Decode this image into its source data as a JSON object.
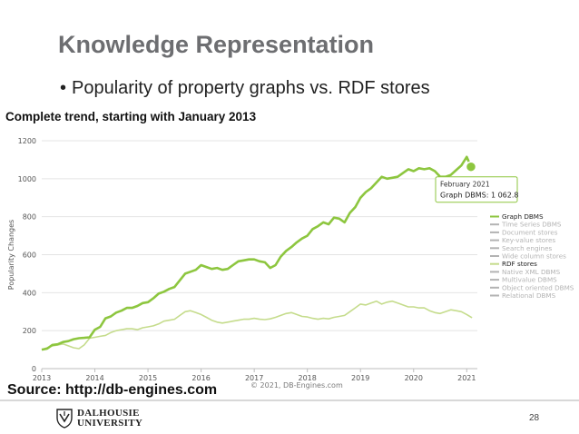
{
  "slide": {
    "title": "Knowledge Representation",
    "bullet": "Popularity of property graphs vs. RDF stores",
    "source": "Source: http://db-engines.com",
    "page_number": "28",
    "logo_line1": "DALHOUSIE",
    "logo_line2": "UNIVERSITY"
  },
  "colors": {
    "title": "#6d6e71",
    "graph_series": "#8dc63f",
    "rdf_series": "#c5dc8c",
    "legend_inactive": "#b3b3b3",
    "grid": "#e4e4e4"
  },
  "chart_data": {
    "type": "line",
    "title": "Complete trend, starting with January 2013",
    "ylabel": "Popularity Changes",
    "xlabel": "",
    "xlim": [
      2013,
      2021.2
    ],
    "ylim": [
      0,
      1200
    ],
    "yticks": [
      "0",
      "200",
      "400",
      "600",
      "800",
      "1000",
      "1200"
    ],
    "xticks": [
      "2013",
      "2014",
      "2015",
      "2016",
      "2017",
      "2018",
      "2019",
      "2020",
      "2021"
    ],
    "grid": true,
    "legend_position": "right",
    "copyright": "© 2021, DB-Engines.com",
    "legend": [
      {
        "label": "Graph DBMS",
        "active": true
      },
      {
        "label": "Time Series DBMS",
        "active": false
      },
      {
        "label": "Document stores",
        "active": false
      },
      {
        "label": "Key-value stores",
        "active": false
      },
      {
        "label": "Search engines",
        "active": false
      },
      {
        "label": "Wide column stores",
        "active": false
      },
      {
        "label": "RDF stores",
        "active": true
      },
      {
        "label": "Native XML DBMS",
        "active": false
      },
      {
        "label": "Multivalue DBMS",
        "active": false
      },
      {
        "label": "Object oriented DBMS",
        "active": false
      },
      {
        "label": "Relational DBMS",
        "active": false
      }
    ],
    "tooltip": {
      "date": "February 2021",
      "series_label": "Graph DBMS: ",
      "value_label": "1 062.8",
      "x": 2021.08,
      "y": 1062.8
    },
    "series": [
      {
        "name": "Graph DBMS",
        "points": [
          [
            2013.0,
            100
          ],
          [
            2013.1,
            105
          ],
          [
            2013.2,
            125
          ],
          [
            2013.3,
            128
          ],
          [
            2013.4,
            140
          ],
          [
            2013.5,
            145
          ],
          [
            2013.6,
            155
          ],
          [
            2013.7,
            160
          ],
          [
            2013.8,
            162
          ],
          [
            2013.9,
            165
          ],
          [
            2014.0,
            205
          ],
          [
            2014.1,
            220
          ],
          [
            2014.2,
            265
          ],
          [
            2014.3,
            275
          ],
          [
            2014.4,
            295
          ],
          [
            2014.5,
            305
          ],
          [
            2014.6,
            320
          ],
          [
            2014.7,
            320
          ],
          [
            2014.8,
            330
          ],
          [
            2014.9,
            345
          ],
          [
            2015.0,
            350
          ],
          [
            2015.1,
            370
          ],
          [
            2015.2,
            395
          ],
          [
            2015.3,
            405
          ],
          [
            2015.4,
            420
          ],
          [
            2015.5,
            430
          ],
          [
            2015.6,
            465
          ],
          [
            2015.7,
            500
          ],
          [
            2015.8,
            510
          ],
          [
            2015.9,
            520
          ],
          [
            2016.0,
            545
          ],
          [
            2016.1,
            535
          ],
          [
            2016.2,
            525
          ],
          [
            2016.3,
            530
          ],
          [
            2016.4,
            520
          ],
          [
            2016.5,
            525
          ],
          [
            2016.6,
            545
          ],
          [
            2016.7,
            565
          ],
          [
            2016.8,
            570
          ],
          [
            2016.9,
            575
          ],
          [
            2017.0,
            575
          ],
          [
            2017.1,
            565
          ],
          [
            2017.2,
            560
          ],
          [
            2017.3,
            530
          ],
          [
            2017.4,
            545
          ],
          [
            2017.5,
            590
          ],
          [
            2017.6,
            620
          ],
          [
            2017.7,
            640
          ],
          [
            2017.8,
            665
          ],
          [
            2017.9,
            685
          ],
          [
            2018.0,
            700
          ],
          [
            2018.1,
            735
          ],
          [
            2018.2,
            750
          ],
          [
            2018.3,
            770
          ],
          [
            2018.4,
            760
          ],
          [
            2018.5,
            795
          ],
          [
            2018.6,
            790
          ],
          [
            2018.7,
            770
          ],
          [
            2018.8,
            820
          ],
          [
            2018.9,
            850
          ],
          [
            2019.0,
            900
          ],
          [
            2019.1,
            930
          ],
          [
            2019.2,
            950
          ],
          [
            2019.3,
            980
          ],
          [
            2019.4,
            1010
          ],
          [
            2019.5,
            1000
          ],
          [
            2019.6,
            1005
          ],
          [
            2019.7,
            1010
          ],
          [
            2019.8,
            1030
          ],
          [
            2019.9,
            1050
          ],
          [
            2020.0,
            1040
          ],
          [
            2020.1,
            1055
          ],
          [
            2020.2,
            1050
          ],
          [
            2020.3,
            1055
          ],
          [
            2020.4,
            1040
          ],
          [
            2020.5,
            1010
          ],
          [
            2020.6,
            1010
          ],
          [
            2020.7,
            1020
          ],
          [
            2020.8,
            1045
          ],
          [
            2020.9,
            1070
          ],
          [
            2021.0,
            1115
          ],
          [
            2021.08,
            1063
          ]
        ]
      },
      {
        "name": "RDF stores",
        "points": [
          [
            2013.0,
            100
          ],
          [
            2013.1,
            110
          ],
          [
            2013.2,
            120
          ],
          [
            2013.3,
            125
          ],
          [
            2013.4,
            130
          ],
          [
            2013.5,
            120
          ],
          [
            2013.6,
            110
          ],
          [
            2013.7,
            105
          ],
          [
            2013.8,
            125
          ],
          [
            2013.9,
            160
          ],
          [
            2014.0,
            165
          ],
          [
            2014.1,
            170
          ],
          [
            2014.2,
            175
          ],
          [
            2014.3,
            190
          ],
          [
            2014.4,
            200
          ],
          [
            2014.5,
            205
          ],
          [
            2014.6,
            210
          ],
          [
            2014.7,
            210
          ],
          [
            2014.8,
            205
          ],
          [
            2014.9,
            215
          ],
          [
            2015.0,
            220
          ],
          [
            2015.1,
            225
          ],
          [
            2015.2,
            235
          ],
          [
            2015.3,
            250
          ],
          [
            2015.4,
            255
          ],
          [
            2015.5,
            260
          ],
          [
            2015.6,
            280
          ],
          [
            2015.7,
            300
          ],
          [
            2015.8,
            305
          ],
          [
            2015.9,
            295
          ],
          [
            2016.0,
            285
          ],
          [
            2016.1,
            270
          ],
          [
            2016.2,
            255
          ],
          [
            2016.3,
            245
          ],
          [
            2016.4,
            240
          ],
          [
            2016.5,
            245
          ],
          [
            2016.6,
            250
          ],
          [
            2016.7,
            255
          ],
          [
            2016.8,
            260
          ],
          [
            2016.9,
            260
          ],
          [
            2017.0,
            265
          ],
          [
            2017.1,
            260
          ],
          [
            2017.2,
            258
          ],
          [
            2017.3,
            262
          ],
          [
            2017.4,
            270
          ],
          [
            2017.5,
            280
          ],
          [
            2017.6,
            290
          ],
          [
            2017.7,
            295
          ],
          [
            2017.8,
            285
          ],
          [
            2017.9,
            275
          ],
          [
            2018.0,
            272
          ],
          [
            2018.1,
            265
          ],
          [
            2018.2,
            260
          ],
          [
            2018.3,
            265
          ],
          [
            2018.4,
            262
          ],
          [
            2018.5,
            270
          ],
          [
            2018.6,
            275
          ],
          [
            2018.7,
            280
          ],
          [
            2018.8,
            300
          ],
          [
            2018.9,
            320
          ],
          [
            2019.0,
            340
          ],
          [
            2019.1,
            335
          ],
          [
            2019.2,
            345
          ],
          [
            2019.3,
            355
          ],
          [
            2019.4,
            340
          ],
          [
            2019.5,
            350
          ],
          [
            2019.6,
            355
          ],
          [
            2019.7,
            345
          ],
          [
            2019.8,
            335
          ],
          [
            2019.9,
            325
          ],
          [
            2020.0,
            325
          ],
          [
            2020.1,
            320
          ],
          [
            2020.2,
            320
          ],
          [
            2020.3,
            305
          ],
          [
            2020.4,
            295
          ],
          [
            2020.5,
            290
          ],
          [
            2020.6,
            300
          ],
          [
            2020.7,
            310
          ],
          [
            2020.8,
            305
          ],
          [
            2020.9,
            300
          ],
          [
            2021.0,
            285
          ],
          [
            2021.1,
            268
          ]
        ]
      }
    ]
  }
}
